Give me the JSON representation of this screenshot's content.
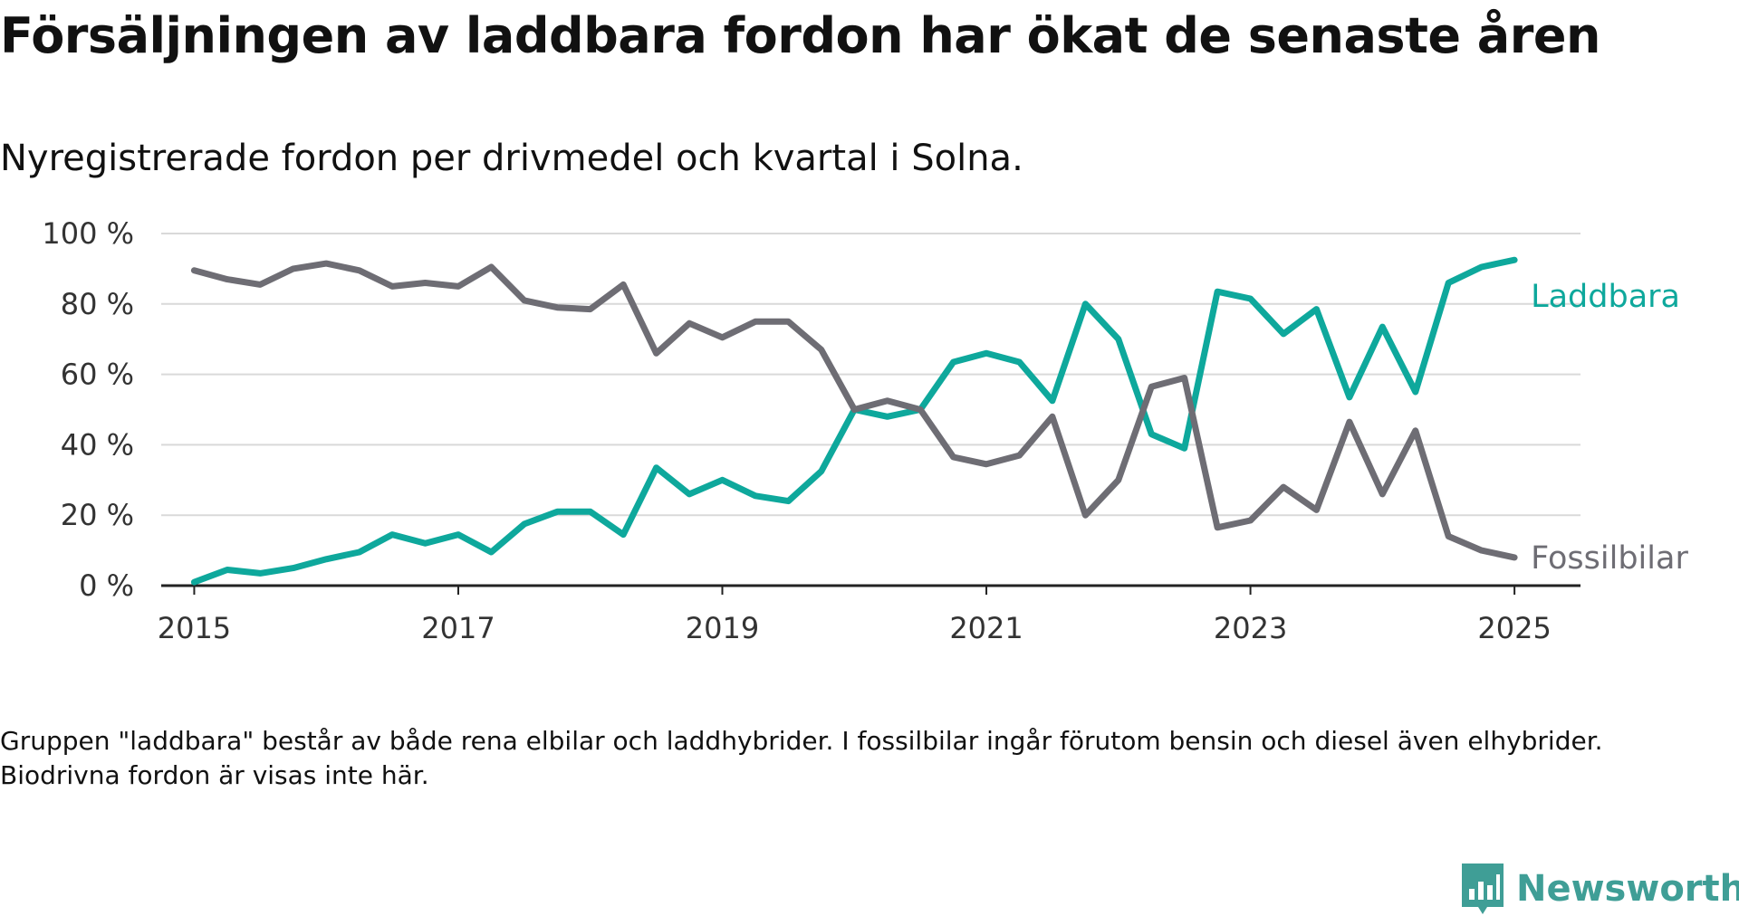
{
  "title": "Försäljningen av laddbara fordon har ökat de senaste åren",
  "subtitle": "Nyregistrerade fordon per drivmedel och kvartal i Solna.",
  "note": "Gruppen \"laddbara\" består av både rena elbilar och laddhybrider. I fossilbilar ingår förutom bensin och diesel även elhybrider. Biodrivna fordon är visas inte här.",
  "brand": "Newsworthy",
  "colors": {
    "laddbara": "#0ea89c",
    "fossil": "#6e6d74",
    "grid": "#d9d9d9",
    "axis": "#222222",
    "brand": "#3f9e96"
  },
  "chart_data": {
    "type": "line",
    "ylim": [
      0,
      100
    ],
    "yticks": [
      0,
      20,
      40,
      60,
      80,
      100
    ],
    "ytick_labels": [
      "0 %",
      "20 %",
      "40 %",
      "60 %",
      "80 %",
      "100 %"
    ],
    "xlim": [
      2014.75,
      2025.5
    ],
    "xticks": [
      2015,
      2017,
      2019,
      2021,
      2023,
      2025
    ],
    "xtick_labels": [
      "2015",
      "2017",
      "2019",
      "2021",
      "2023",
      "2025"
    ],
    "grid": true,
    "x": [
      2015.0,
      2015.25,
      2015.5,
      2015.75,
      2016.0,
      2016.25,
      2016.5,
      2016.75,
      2017.0,
      2017.25,
      2017.5,
      2017.75,
      2018.0,
      2018.25,
      2018.5,
      2018.75,
      2019.0,
      2019.25,
      2019.5,
      2019.75,
      2020.0,
      2020.25,
      2020.5,
      2020.75,
      2021.0,
      2021.25,
      2021.5,
      2021.75,
      2022.0,
      2022.25,
      2022.5,
      2022.75,
      2023.0,
      2023.25,
      2023.5,
      2023.75,
      2024.0,
      2024.25,
      2024.5,
      2024.75,
      2025.0
    ],
    "series": [
      {
        "name": "Laddbara",
        "color": "#0ea89c",
        "values": [
          1,
          4.5,
          3.5,
          5,
          7.5,
          9.5,
          14.5,
          12,
          14.5,
          9.5,
          17.5,
          21,
          21,
          14.5,
          33.5,
          26,
          30,
          25.5,
          24,
          32.5,
          50,
          48,
          50,
          63.5,
          66,
          63.5,
          52.5,
          80,
          70,
          43,
          39,
          83.5,
          81.5,
          71.5,
          78.5,
          53.5,
          73.5,
          55,
          86,
          90.5,
          92.5
        ]
      },
      {
        "name": "Fossilbilar",
        "color": "#6e6d74",
        "values": [
          89.5,
          87,
          85.5,
          90,
          91.5,
          89.5,
          85,
          86,
          85,
          90.5,
          81,
          79,
          78.5,
          85.5,
          66,
          74.5,
          70.5,
          75,
          75,
          67,
          50,
          52.5,
          50,
          36.5,
          34.5,
          37,
          48,
          20,
          30,
          56.5,
          59,
          16.5,
          18.5,
          28,
          21.5,
          46.5,
          26,
          44,
          14,
          10,
          8
        ]
      }
    ]
  }
}
